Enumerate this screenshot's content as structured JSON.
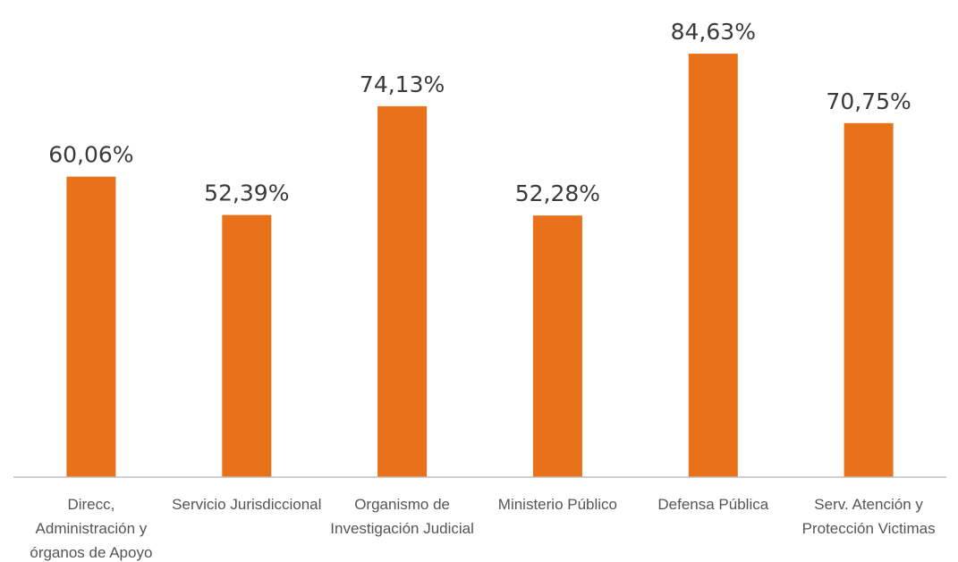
{
  "chart_data": {
    "type": "bar",
    "title": "",
    "xlabel": "",
    "ylabel": "",
    "ylim": [
      0,
      100
    ],
    "grid": false,
    "legend": "none",
    "bar_color": "#E8711A",
    "axis_color": "#BFBFBF",
    "categories": [
      [
        "Direcc,",
        "Administración y",
        "órganos de Apoyo"
      ],
      [
        "Servicio Jurisdiccional"
      ],
      [
        "Organismo de",
        "Investigación Judicial"
      ],
      [
        "Ministerio Público"
      ],
      [
        "Defensa Pública"
      ],
      [
        "Serv. Atención y",
        "Protección Victimas"
      ]
    ],
    "values": [
      60.06,
      52.39,
      74.13,
      52.28,
      84.63,
      70.75
    ],
    "data_labels": [
      "60,06%",
      "52,39%",
      "74,13%",
      "52,28%",
      "84,63%",
      "70,75%"
    ]
  }
}
